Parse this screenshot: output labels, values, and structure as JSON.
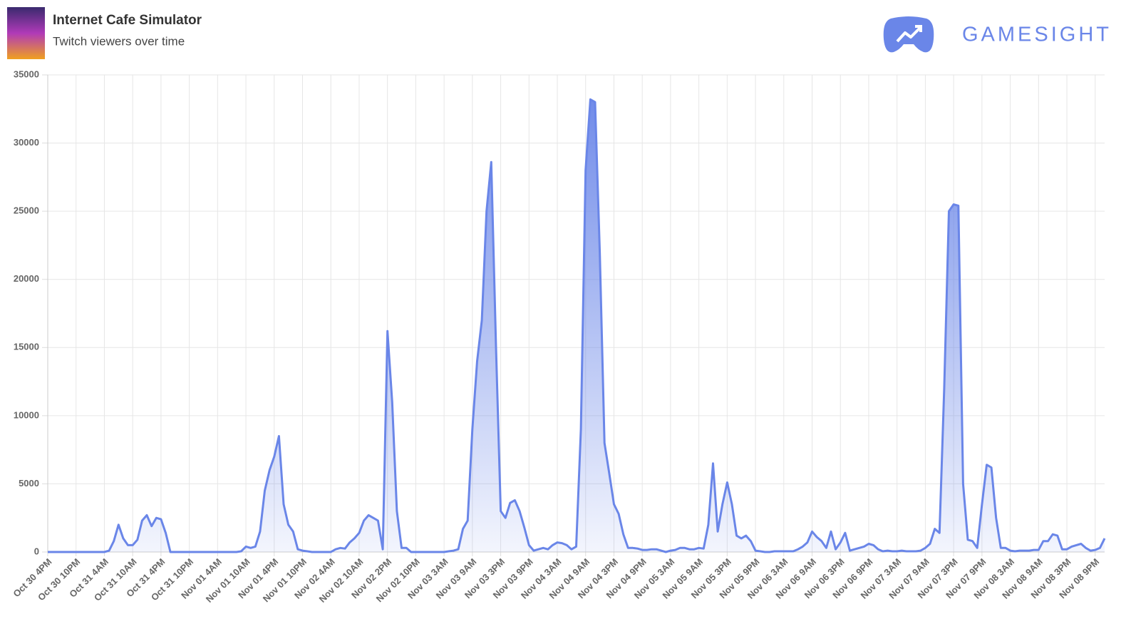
{
  "header": {
    "title": "Internet Cafe Simulator",
    "subtitle": "Twitch viewers over time",
    "logo": "GAMESIGHT"
  },
  "chart_data": {
    "type": "area",
    "categories": [
      "Oct 30 4PM",
      null,
      null,
      null,
      null,
      null,
      "Oct 30 10PM",
      null,
      null,
      null,
      null,
      null,
      "Oct 31 4AM",
      null,
      null,
      null,
      null,
      null,
      "Oct 31 10AM",
      null,
      null,
      null,
      null,
      null,
      "Oct 31 4PM",
      null,
      null,
      null,
      null,
      null,
      "Oct 31 10PM",
      null,
      null,
      null,
      null,
      null,
      "Nov 01 4AM",
      null,
      null,
      null,
      null,
      null,
      "Nov 01 10AM",
      null,
      null,
      null,
      null,
      null,
      "Nov 01 4PM",
      null,
      null,
      null,
      null,
      null,
      "Nov 01 10PM",
      null,
      null,
      null,
      null,
      null,
      "Nov 02 4AM",
      null,
      null,
      null,
      null,
      null,
      "Nov 02 10AM",
      null,
      null,
      null,
      null,
      null,
      "Nov 02 2PM",
      null,
      null,
      null,
      null,
      null,
      "Nov 02 10PM",
      null,
      null,
      null,
      null,
      null,
      "Nov 03 3AM",
      null,
      null,
      null,
      null,
      null,
      "Nov 03 9AM",
      null,
      null,
      null,
      null,
      null,
      "Nov 03 3PM",
      null,
      null,
      null,
      null,
      null,
      "Nov 03 9PM",
      null,
      null,
      null,
      null,
      null,
      "Nov 04 3AM",
      null,
      null,
      null,
      null,
      null,
      "Nov 04 9AM",
      null,
      null,
      null,
      null,
      null,
      "Nov 04 3PM",
      null,
      null,
      null,
      null,
      null,
      "Nov 04 9PM",
      null,
      null,
      null,
      null,
      null,
      "Nov 05 3AM",
      null,
      null,
      null,
      null,
      null,
      "Nov 05 9AM",
      null,
      null,
      null,
      null,
      null,
      "Nov 05 3PM",
      null,
      null,
      null,
      null,
      null,
      "Nov 05 9PM",
      null,
      null,
      null,
      null,
      null,
      "Nov 06 3AM",
      null,
      null,
      null,
      null,
      null,
      "Nov 06 9AM",
      null,
      null,
      null,
      null,
      null,
      "Nov 06 3PM",
      null,
      null,
      null,
      null,
      null,
      "Nov 06 9PM",
      null,
      null,
      null,
      null,
      null,
      "Nov 07 3AM",
      null,
      null,
      null,
      null,
      null,
      "Nov 07 9AM",
      null,
      null,
      null,
      null,
      null,
      "Nov 07 3PM",
      null,
      null,
      null,
      null,
      null,
      "Nov 07 9PM",
      null,
      null,
      null,
      null,
      null,
      "Nov 08 3AM",
      null,
      null,
      null,
      null,
      null,
      "Nov 08 9AM",
      null,
      null,
      null,
      null,
      null,
      "Nov 08 3PM",
      null,
      null,
      null,
      null,
      null,
      "Nov 08 9PM",
      null,
      null
    ],
    "values": [
      0,
      0,
      0,
      0,
      0,
      0,
      0,
      0,
      0,
      0,
      0,
      0,
      0,
      100,
      800,
      2000,
      1000,
      500,
      500,
      900,
      2300,
      2700,
      1900,
      2500,
      2400,
      1400,
      0,
      0,
      0,
      0,
      0,
      0,
      0,
      0,
      0,
      0,
      0,
      0,
      0,
      0,
      0,
      50,
      400,
      300,
      400,
      1500,
      4500,
      6000,
      7000,
      8500,
      3500,
      2000,
      1500,
      200,
      100,
      50,
      0,
      0,
      0,
      0,
      0,
      200,
      300,
      250,
      700,
      1000,
      1400,
      2300,
      2700,
      2500,
      2300,
      200,
      16200,
      11000,
      3000,
      300,
      300,
      0,
      0,
      0,
      0,
      0,
      0,
      0,
      0,
      50,
      100,
      200,
      1700,
      2300,
      9000,
      14000,
      17000,
      25000,
      28600,
      15000,
      3000,
      2500,
      3600,
      3800,
      3000,
      1800,
      500,
      100,
      200,
      300,
      200,
      500,
      700,
      650,
      500,
      200,
      400,
      9000,
      28000,
      33200,
      33000,
      22000,
      8000,
      5800,
      3500,
      2800,
      1300,
      300,
      300,
      250,
      150,
      150,
      200,
      200,
      100,
      0,
      100,
      150,
      300,
      300,
      200,
      200,
      300,
      250,
      2000,
      6500,
      1500,
      3500,
      5100,
      3500,
      1200,
      1000,
      1200,
      800,
      100,
      50,
      0,
      0,
      50,
      50,
      50,
      50,
      50,
      200,
      400,
      700,
      1500,
      1100,
      800,
      300,
      1500,
      200,
      700,
      1400,
      100,
      200,
      300,
      400,
      600,
      500,
      200,
      50,
      100,
      50,
      50,
      100,
      50,
      50,
      50,
      100,
      300,
      600,
      1700,
      1400,
      12000,
      25000,
      25500,
      25400,
      5000,
      900,
      800,
      300,
      3500,
      6400,
      6200,
      2500,
      300,
      300,
      100,
      50,
      100,
      100,
      100,
      150,
      150,
      800,
      800,
      1300,
      1200,
      200,
      200,
      400,
      500,
      600,
      300,
      100,
      150,
      300,
      1000
    ],
    "color": "#6a86e8",
    "ylim": [
      0,
      35000
    ],
    "yticks": [
      0,
      5000,
      10000,
      15000,
      20000,
      25000,
      30000,
      35000
    ],
    "grid": true
  }
}
